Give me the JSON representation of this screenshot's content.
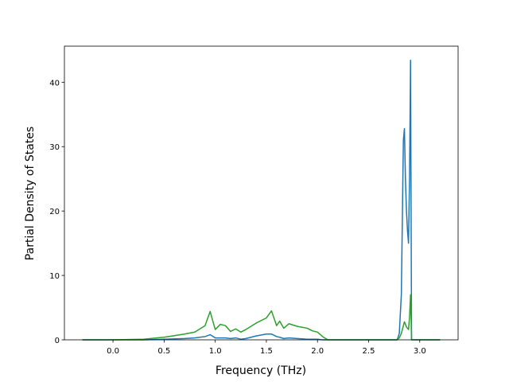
{
  "chart_data": {
    "type": "line",
    "xlabel": "Frequency (THz)",
    "ylabel": "Partial Density of States",
    "x": [
      -0.3,
      0.0,
      0.3,
      0.5,
      0.7,
      0.8,
      0.9,
      0.95,
      1.0,
      1.05,
      1.1,
      1.15,
      1.2,
      1.25,
      1.3,
      1.4,
      1.5,
      1.55,
      1.6,
      1.63,
      1.67,
      1.72,
      1.8,
      1.9,
      1.95,
      2.0,
      2.05,
      2.1,
      2.5,
      2.78,
      2.8,
      2.82,
      2.84,
      2.85,
      2.86,
      2.87,
      2.88,
      2.89,
      2.9,
      2.91,
      2.92,
      3.2
    ],
    "series": [
      {
        "color": "#1f77b4",
        "values": [
          0,
          0,
          0,
          0.1,
          0.2,
          0.3,
          0.5,
          0.8,
          0.3,
          0.3,
          0.3,
          0.2,
          0.3,
          0.1,
          0.2,
          0.6,
          0.9,
          0.9,
          0.5,
          0.4,
          0.2,
          0.3,
          0.2,
          0.1,
          0.1,
          0.1,
          0,
          0,
          0,
          0,
          1.0,
          7.0,
          31.0,
          32.8,
          25,
          20,
          17,
          15,
          25,
          43.4,
          0,
          0
        ]
      },
      {
        "color": "#2ca02c",
        "values": [
          0,
          0,
          0.1,
          0.4,
          0.9,
          1.2,
          2.2,
          4.4,
          1.6,
          2.4,
          2.2,
          1.3,
          1.7,
          1.2,
          1.6,
          2.6,
          3.4,
          4.5,
          2.2,
          2.9,
          1.8,
          2.5,
          2.1,
          1.8,
          1.4,
          1.2,
          0.5,
          0,
          0,
          0,
          0.3,
          1.0,
          2.2,
          2.8,
          2.4,
          2.0,
          1.8,
          1.6,
          3.5,
          7.0,
          0,
          0
        ]
      }
    ],
    "xlim": [
      -0.475,
      3.375
    ],
    "ylim": [
      0,
      45.6
    ],
    "xticks": [
      {
        "value": 0,
        "label": "0.0"
      },
      {
        "value": 0.5,
        "label": "0.5"
      },
      {
        "value": 1,
        "label": "1.0"
      },
      {
        "value": 1.5,
        "label": "1.5"
      },
      {
        "value": 2,
        "label": "2.0"
      },
      {
        "value": 2.5,
        "label": "2.5"
      },
      {
        "value": 3,
        "label": "3.0"
      }
    ],
    "yticks": [
      0,
      10,
      20,
      30,
      40
    ]
  }
}
